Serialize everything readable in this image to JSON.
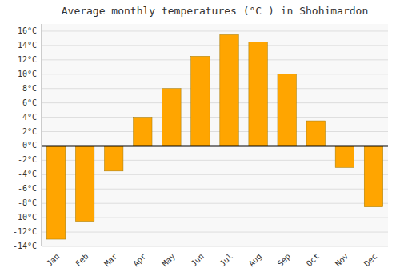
{
  "chart_data": {
    "type": "bar",
    "title": "Average monthly temperatures (°C ) in Shohimardon",
    "categories": [
      "Jan",
      "Feb",
      "Mar",
      "Apr",
      "May",
      "Jun",
      "Jul",
      "Aug",
      "Sep",
      "Oct",
      "Nov",
      "Dec"
    ],
    "values": [
      -13,
      -10.5,
      -3.5,
      4,
      8,
      12.5,
      15.5,
      14.5,
      10,
      3.5,
      -3,
      -8.5
    ],
    "color": "#FFA500",
    "ylim": [
      -14,
      17
    ],
    "yticks": [
      {
        "value": -14,
        "label": "-14°C"
      },
      {
        "value": -12,
        "label": "-12°C"
      },
      {
        "value": -10,
        "label": "-10°C"
      },
      {
        "value": -8,
        "label": "-8°C"
      },
      {
        "value": -6,
        "label": "-6°C"
      },
      {
        "value": -4,
        "label": "-4°C"
      },
      {
        "value": -2,
        "label": "-2°C"
      },
      {
        "value": 0,
        "label": "0°C"
      },
      {
        "value": 2,
        "label": "2°C"
      },
      {
        "value": 4,
        "label": "4°C"
      },
      {
        "value": 6,
        "label": "6°C"
      },
      {
        "value": 8,
        "label": "8°C"
      },
      {
        "value": 10,
        "label": "10°C"
      },
      {
        "value": 12,
        "label": "12°C"
      },
      {
        "value": 14,
        "label": "14°C"
      },
      {
        "value": 16,
        "label": "16°C"
      }
    ],
    "grid": true
  }
}
